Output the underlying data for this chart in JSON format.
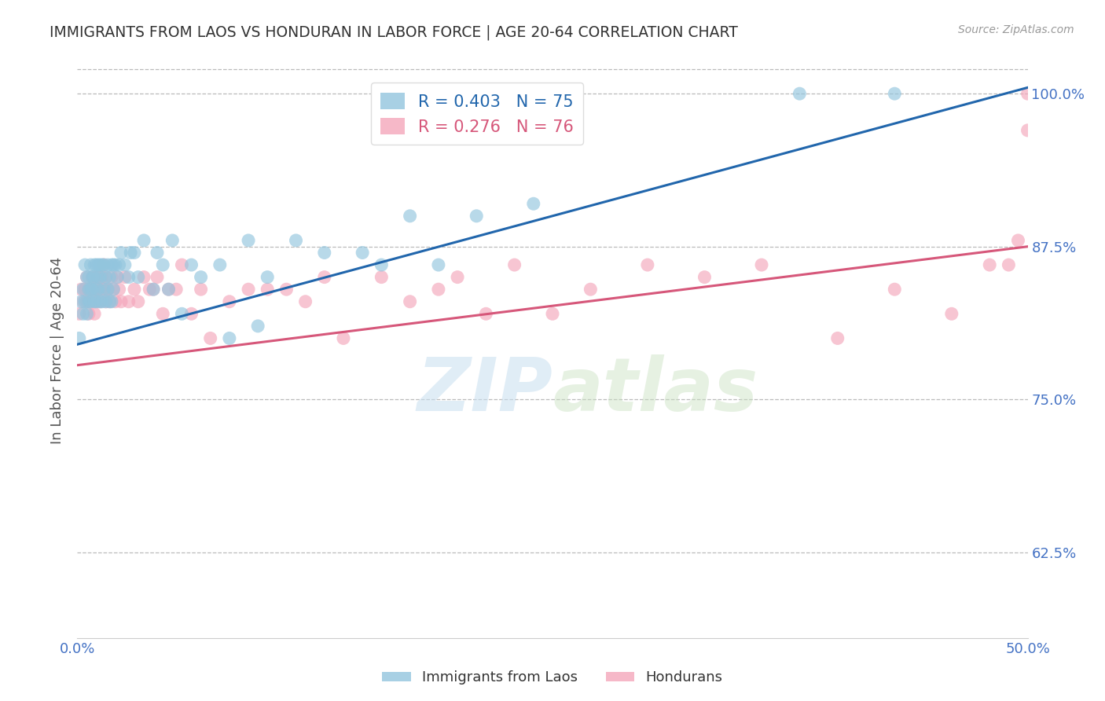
{
  "title": "IMMIGRANTS FROM LAOS VS HONDURAN IN LABOR FORCE | AGE 20-64 CORRELATION CHART",
  "source": "Source: ZipAtlas.com",
  "ylabel": "In Labor Force | Age 20-64",
  "x_min": 0.0,
  "x_max": 0.5,
  "y_min": 0.555,
  "y_max": 1.025,
  "yticks": [
    0.625,
    0.75,
    0.875,
    1.0
  ],
  "ytick_labels": [
    "62.5%",
    "75.0%",
    "87.5%",
    "100.0%"
  ],
  "xticks": [
    0.0,
    0.1,
    0.2,
    0.3,
    0.4,
    0.5
  ],
  "xtick_labels": [
    "0.0%",
    "",
    "",
    "",
    "",
    "50.0%"
  ],
  "blue_color": "#92c5de",
  "pink_color": "#f4a6bb",
  "blue_line_color": "#2166ac",
  "pink_line_color": "#d6577a",
  "blue_R": 0.403,
  "blue_N": 75,
  "pink_R": 0.276,
  "pink_N": 76,
  "legend_label_blue": "Immigrants from Laos",
  "legend_label_pink": "Hondurans",
  "watermark_zip": "ZIP",
  "watermark_atlas": "atlas",
  "background_color": "#ffffff",
  "title_color": "#333333",
  "axis_label_color": "#4472c4",
  "blue_x": [
    0.001,
    0.002,
    0.003,
    0.003,
    0.004,
    0.004,
    0.005,
    0.005,
    0.006,
    0.006,
    0.006,
    0.007,
    0.007,
    0.007,
    0.008,
    0.008,
    0.009,
    0.009,
    0.009,
    0.01,
    0.01,
    0.01,
    0.011,
    0.011,
    0.011,
    0.012,
    0.012,
    0.012,
    0.013,
    0.013,
    0.014,
    0.014,
    0.015,
    0.015,
    0.016,
    0.016,
    0.017,
    0.017,
    0.018,
    0.018,
    0.019,
    0.019,
    0.02,
    0.021,
    0.022,
    0.023,
    0.025,
    0.027,
    0.028,
    0.03,
    0.032,
    0.035,
    0.04,
    0.042,
    0.045,
    0.048,
    0.05,
    0.055,
    0.06,
    0.065,
    0.075,
    0.08,
    0.09,
    0.095,
    0.1,
    0.115,
    0.13,
    0.15,
    0.16,
    0.175,
    0.19,
    0.21,
    0.24,
    0.38,
    0.43
  ],
  "blue_y": [
    0.8,
    0.83,
    0.82,
    0.84,
    0.83,
    0.86,
    0.82,
    0.85,
    0.83,
    0.85,
    0.84,
    0.84,
    0.86,
    0.83,
    0.85,
    0.84,
    0.83,
    0.86,
    0.85,
    0.84,
    0.86,
    0.83,
    0.85,
    0.84,
    0.86,
    0.83,
    0.85,
    0.86,
    0.83,
    0.86,
    0.84,
    0.86,
    0.83,
    0.85,
    0.84,
    0.86,
    0.83,
    0.85,
    0.83,
    0.86,
    0.84,
    0.86,
    0.86,
    0.85,
    0.86,
    0.87,
    0.86,
    0.85,
    0.87,
    0.87,
    0.85,
    0.88,
    0.84,
    0.87,
    0.86,
    0.84,
    0.88,
    0.82,
    0.86,
    0.85,
    0.86,
    0.8,
    0.88,
    0.81,
    0.85,
    0.88,
    0.87,
    0.87,
    0.86,
    0.9,
    0.86,
    0.9,
    0.91,
    1.0,
    1.0
  ],
  "pink_x": [
    0.001,
    0.002,
    0.003,
    0.004,
    0.005,
    0.005,
    0.006,
    0.006,
    0.007,
    0.007,
    0.008,
    0.008,
    0.009,
    0.009,
    0.01,
    0.01,
    0.011,
    0.011,
    0.012,
    0.012,
    0.013,
    0.013,
    0.014,
    0.014,
    0.015,
    0.015,
    0.016,
    0.016,
    0.017,
    0.018,
    0.019,
    0.02,
    0.021,
    0.022,
    0.023,
    0.025,
    0.027,
    0.03,
    0.032,
    0.035,
    0.038,
    0.04,
    0.042,
    0.045,
    0.048,
    0.052,
    0.055,
    0.06,
    0.065,
    0.07,
    0.08,
    0.09,
    0.1,
    0.11,
    0.12,
    0.13,
    0.14,
    0.16,
    0.175,
    0.19,
    0.2,
    0.215,
    0.23,
    0.25,
    0.27,
    0.3,
    0.33,
    0.36,
    0.4,
    0.43,
    0.46,
    0.48,
    0.49,
    0.495,
    0.5,
    0.5
  ],
  "pink_y": [
    0.82,
    0.84,
    0.83,
    0.84,
    0.83,
    0.85,
    0.82,
    0.84,
    0.84,
    0.83,
    0.84,
    0.85,
    0.83,
    0.82,
    0.84,
    0.85,
    0.83,
    0.84,
    0.85,
    0.83,
    0.84,
    0.85,
    0.84,
    0.86,
    0.83,
    0.85,
    0.84,
    0.84,
    0.83,
    0.85,
    0.84,
    0.83,
    0.85,
    0.84,
    0.83,
    0.85,
    0.83,
    0.84,
    0.83,
    0.85,
    0.84,
    0.84,
    0.85,
    0.82,
    0.84,
    0.84,
    0.86,
    0.82,
    0.84,
    0.8,
    0.83,
    0.84,
    0.84,
    0.84,
    0.83,
    0.85,
    0.8,
    0.85,
    0.83,
    0.84,
    0.85,
    0.82,
    0.86,
    0.82,
    0.84,
    0.86,
    0.85,
    0.86,
    0.8,
    0.84,
    0.82,
    0.86,
    0.86,
    0.88,
    1.0,
    0.97
  ],
  "blue_line_x0": 0.0,
  "blue_line_y0": 0.795,
  "blue_line_x1": 0.5,
  "blue_line_y1": 1.005,
  "pink_line_x0": 0.0,
  "pink_line_y0": 0.778,
  "pink_line_x1": 0.5,
  "pink_line_y1": 0.875
}
